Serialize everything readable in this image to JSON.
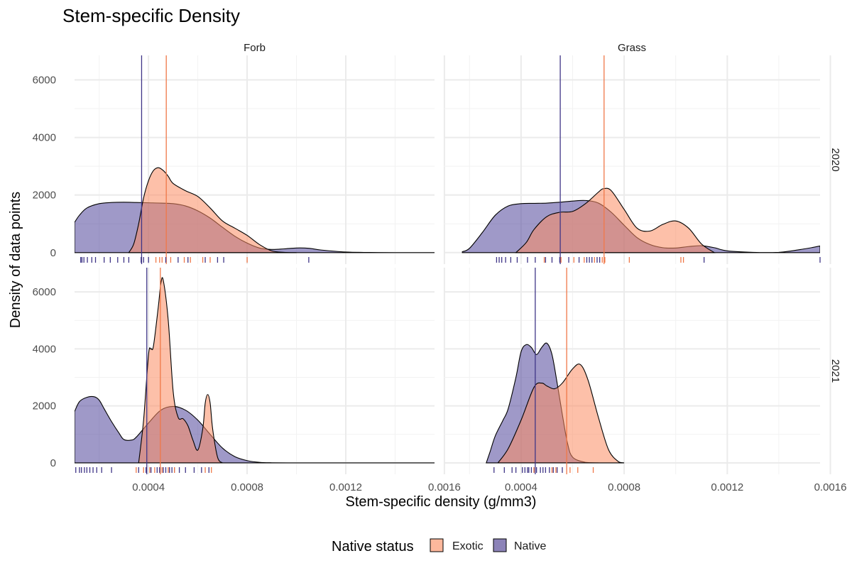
{
  "chart_data": {
    "type": "area",
    "title": "Stem-specific Density",
    "xlabel": "Stem-specific density (g/mm3)",
    "ylabel": "Density of data points",
    "xlim": [
      0.0001,
      0.00156
    ],
    "ylim": [
      -400,
      6850
    ],
    "x_ticks": [
      0.0004,
      0.0008,
      0.0012,
      0.0016
    ],
    "x_tick_labels": [
      "0.0004",
      "0.0008",
      "0.0012",
      "0.0016"
    ],
    "y_ticks": [
      0,
      2000,
      4000,
      6000
    ],
    "y_tick_labels": [
      "0",
      "2000",
      "4000",
      "6000"
    ],
    "columns": [
      "Forb",
      "Grass"
    ],
    "rows": [
      "2020",
      "2021"
    ],
    "grid": true,
    "legend": {
      "title": "Native status",
      "position": "bottom",
      "entries": [
        {
          "name": "Exotic",
          "color": "#fdb89c"
        },
        {
          "name": "Native",
          "color": "#8c83b8"
        }
      ]
    },
    "colors": {
      "Exotic_fill": "#fc8d62",
      "Exotic_line": "#f07848",
      "Native_fill": "#50469a",
      "Native_line": "#3f3587",
      "rug_Exotic": "#f07848",
      "rug_Native": "#3f3587"
    },
    "panels": [
      {
        "column": "Forb",
        "row": "2020",
        "series": [
          {
            "name": "Native",
            "mean": 0.000372,
            "x": [
              0.0001,
              0.00012,
              0.00015,
              0.0002,
              0.00025,
              0.0003,
              0.00035,
              0.0004,
              0.00045,
              0.0005,
              0.00055,
              0.0006,
              0.00065,
              0.0007,
              0.00075,
              0.0008,
              0.00085,
              0.0009,
              0.00095,
              0.001,
              0.00105,
              0.0011,
              0.0012,
              0.0013,
              0.0014,
              0.00156
            ],
            "y": [
              1050,
              1300,
              1550,
              1700,
              1740,
              1750,
              1740,
              1730,
              1720,
              1700,
              1620,
              1450,
              1200,
              880,
              570,
              330,
              160,
              110,
              130,
              160,
              150,
              90,
              20,
              5,
              0,
              0
            ]
          },
          {
            "name": "Exotic",
            "mean": 0.000472,
            "x": [
              0.00032,
              0.00034,
              0.00036,
              0.00038,
              0.0004,
              0.00042,
              0.00044,
              0.00046,
              0.00048,
              0.0005,
              0.00055,
              0.0006,
              0.00065,
              0.0007,
              0.00075,
              0.0008,
              0.00085,
              0.0009,
              0.00095,
              0.001
            ],
            "y": [
              0,
              300,
              1000,
              1900,
              2500,
              2850,
              2950,
              2850,
              2650,
              2400,
              2150,
              1950,
              1550,
              1100,
              850,
              600,
              280,
              60,
              10,
              0
            ]
          }
        ],
        "rug": {
          "Native": [
            0.000125,
            0.00013,
            0.000138,
            0.000152,
            0.00017,
            0.000185,
            0.00022,
            0.000245,
            0.000275,
            0.0003,
            0.00032,
            0.00037,
            0.00038,
            0.0004,
            0.00047,
            0.00052,
            0.00056,
            0.00063,
            0.00068,
            0.000705,
            0.00105
          ],
          "Exotic": [
            0.00043,
            0.000445,
            0.000455,
            0.00049,
            0.000545,
            0.00057,
            0.00062,
            0.00065,
            0.0008
          ]
        }
      },
      {
        "column": "Grass",
        "row": "2020",
        "series": [
          {
            "name": "Native",
            "mean": 0.000552,
            "x": [
              0.000172,
              0.0002,
              0.00025,
              0.0003,
              0.00035,
              0.0004,
              0.00045,
              0.0005,
              0.00055,
              0.0006,
              0.00065,
              0.0007,
              0.00075,
              0.0008,
              0.00085,
              0.0009,
              0.00095,
              0.001,
              0.00105,
              0.0011,
              0.00115,
              0.0012,
              0.0013,
              0.0014,
              0.0015,
              0.00156
            ],
            "y": [
              30,
              150,
              700,
              1300,
              1620,
              1700,
              1710,
              1720,
              1750,
              1790,
              1810,
              1720,
              1400,
              950,
              520,
              280,
              170,
              160,
              210,
              240,
              170,
              60,
              10,
              10,
              130,
              230
            ]
          },
          {
            "name": "Exotic",
            "mean": 0.000722,
            "x": [
              0.00038,
              0.00042,
              0.00045,
              0.0005,
              0.00055,
              0.0006,
              0.00065,
              0.0007,
              0.00072,
              0.00075,
              0.0008,
              0.00085,
              0.0009,
              0.00095,
              0.001,
              0.00105,
              0.0011,
              0.00115
            ],
            "y": [
              0,
              350,
              800,
              1250,
              1400,
              1430,
              1700,
              2100,
              2220,
              2150,
              1500,
              850,
              750,
              980,
              1100,
              850,
              300,
              0
            ]
          }
        ],
        "rug": {
          "Native": [
            0.000305,
            0.000315,
            0.000325,
            0.00034,
            0.00036,
            0.000385,
            0.000425,
            0.000455,
            0.000495,
            0.00052,
            0.00055,
            0.000585,
            0.000625,
            0.000655,
            0.000665,
            0.000675,
            0.000695,
            0.000705,
            0.00111,
            0.00156
          ],
          "Exotic": [
            0.00049,
            0.000555,
            0.000605,
            0.000645,
            0.000685,
            0.000715,
            0.000725,
            0.00082,
            0.00102,
            0.00103
          ]
        }
      },
      {
        "column": "Forb",
        "row": "2021",
        "series": [
          {
            "name": "Native",
            "mean": 0.000393,
            "x": [
              0.0001,
              0.00012,
              0.00015,
              0.00018,
              0.0002,
              0.00022,
              0.00025,
              0.00028,
              0.0003,
              0.00033,
              0.00035,
              0.0004,
              0.00045,
              0.0005,
              0.00055,
              0.0006,
              0.00065,
              0.0007,
              0.00075,
              0.0008,
              0.00085,
              0.0009,
              0.001,
              0.0011,
              0.0012,
              0.00156
            ],
            "y": [
              1800,
              2150,
              2300,
              2320,
              2200,
              1900,
              1450,
              1050,
              820,
              800,
              900,
              1400,
              1850,
              1980,
              1850,
              1500,
              1000,
              520,
              220,
              80,
              20,
              5,
              0,
              0,
              0,
              0
            ]
          },
          {
            "name": "Exotic",
            "mean": 0.000448,
            "x": [
              0.00036,
              0.00038,
              0.0004,
              0.00041,
              0.00042,
              0.00044,
              0.00045,
              0.00046,
              0.00048,
              0.0005,
              0.00052,
              0.00054,
              0.00056,
              0.00058,
              0.0006,
              0.00062,
              0.00063,
              0.00064,
              0.00065,
              0.00066,
              0.00068,
              0.0007
            ],
            "y": [
              0,
              1500,
              3800,
              4000,
              4100,
              5500,
              6300,
              6400,
              5000,
              2500,
              1600,
              1550,
              1300,
              800,
              450,
              1200,
              2100,
              2400,
              2100,
              1200,
              200,
              0
            ]
          }
        ],
        "rug": {
          "Native": [
            0.000105,
            0.00012,
            0.000128,
            0.00014,
            0.00015,
            0.000162,
            0.000175,
            0.00019,
            0.00021,
            0.00025,
            0.00036,
            0.00039,
            0.00041,
            0.000435,
            0.000445,
            0.00046,
            0.00047,
            0.000485,
            0.000495,
            0.000505,
            0.000525,
            0.00055,
            0.000585,
            0.000615,
            0.000645
          ],
          "Exotic": [
            0.00035,
            0.00038,
            0.000405,
            0.000425,
            0.000455,
            0.00048,
            0.000505,
            0.00063,
            0.000655
          ]
        }
      },
      {
        "column": "Grass",
        "row": "2021",
        "series": [
          {
            "name": "Native",
            "mean": 0.000455,
            "x": [
              0.000265,
              0.00028,
              0.0003,
              0.00033,
              0.00035,
              0.00038,
              0.0004,
              0.00042,
              0.00044,
              0.00046,
              0.00048,
              0.0005,
              0.00052,
              0.00054,
              0.00056,
              0.00058,
              0.0006,
              0.00065,
              0.0007
            ],
            "y": [
              0,
              400,
              950,
              1500,
              1900,
              3000,
              3900,
              4150,
              4050,
              3800,
              4050,
              4200,
              3800,
              2800,
              1700,
              700,
              200,
              20,
              0
            ]
          },
          {
            "name": "Exotic",
            "mean": 0.000577,
            "x": [
              0.00031,
              0.00035,
              0.0004,
              0.00045,
              0.00048,
              0.0005,
              0.00053,
              0.00056,
              0.0006,
              0.00063,
              0.00066,
              0.0007,
              0.00074,
              0.00078,
              0.0008
            ],
            "y": [
              0,
              500,
              1500,
              2650,
              2800,
              2700,
              2600,
              2800,
              3300,
              3450,
              2900,
              1600,
              450,
              30,
              0
            ]
          }
        ],
        "rug": {
          "Native": [
            0.000295,
            0.000335,
            0.000365,
            0.00038,
            0.000405,
            0.000415,
            0.000425,
            0.00043,
            0.00044,
            0.00045,
            0.00046,
            0.000475,
            0.000485,
            0.000495,
            0.00051,
            0.000525,
            0.00054,
            0.00056
          ],
          "Exotic": [
            0.00045,
            0.00052,
            0.000535,
            0.00059,
            0.00062,
            0.00068
          ]
        }
      }
    ]
  }
}
